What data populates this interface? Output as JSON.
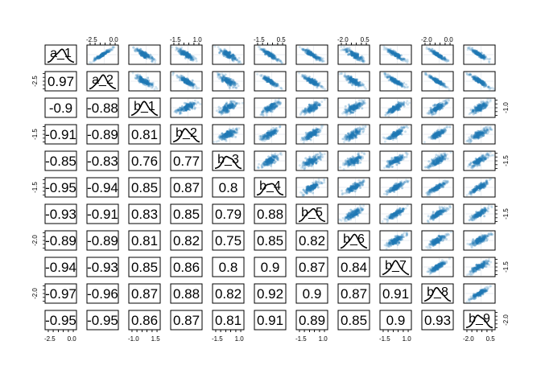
{
  "chart_data": {
    "type": "scatter",
    "subtype": "pairs-matrix",
    "title": "",
    "variables": [
      "a_1",
      "a_2",
      "b_1",
      "b_2",
      "b_3",
      "b_4",
      "b_5",
      "b_6",
      "b_7",
      "b_8",
      "b_9"
    ],
    "correlation_rows": [
      [
        0.97
      ],
      [
        -0.9,
        -0.88
      ],
      [
        -0.91,
        -0.89,
        0.81
      ],
      [
        -0.85,
        -0.83,
        0.76,
        0.77
      ],
      [
        -0.95,
        -0.94,
        0.85,
        0.87,
        0.8
      ],
      [
        -0.93,
        -0.91,
        0.83,
        0.85,
        0.79,
        0.88
      ],
      [
        -0.89,
        -0.89,
        0.81,
        0.82,
        0.75,
        0.85,
        0.82
      ],
      [
        -0.94,
        -0.93,
        0.85,
        0.86,
        0.8,
        0.9,
        0.87,
        0.84
      ],
      [
        -0.97,
        -0.96,
        0.87,
        0.88,
        0.82,
        0.92,
        0.9,
        0.87,
        0.91
      ],
      [
        -0.95,
        -0.95,
        0.86,
        0.87,
        0.81,
        0.91,
        0.89,
        0.85,
        0.9,
        0.93
      ]
    ],
    "correlation_labels_rows": [
      [
        "0.97"
      ],
      [
        "-0.9",
        "-0.88"
      ],
      [
        "-0.91",
        "-0.89",
        "0.81"
      ],
      [
        "-0.85",
        "-0.83",
        "0.76",
        "0.77"
      ],
      [
        "-0.95",
        "-0.94",
        "0.85",
        "0.87",
        "0.8"
      ],
      [
        "-0.93",
        "-0.91",
        "0.83",
        "0.85",
        "0.79",
        "0.88"
      ],
      [
        "-0.89",
        "-0.89",
        "0.81",
        "0.82",
        "0.75",
        "0.85",
        "0.82"
      ],
      [
        "-0.94",
        "-0.93",
        "0.85",
        "0.86",
        "0.8",
        "0.9",
        "0.87",
        "0.84"
      ],
      [
        "-0.97",
        "-0.96",
        "0.87",
        "0.88",
        "0.82",
        "0.92",
        "0.9",
        "0.87",
        "0.91"
      ],
      [
        "-0.95",
        "-0.95",
        "0.86",
        "0.87",
        "0.81",
        "0.91",
        "0.89",
        "0.85",
        "0.9",
        "0.93"
      ]
    ],
    "axis_ranges": [
      [
        -3.2,
        0.6
      ],
      [
        -3.2,
        0.6
      ],
      [
        -1.6,
        2.0
      ],
      [
        -2.0,
        1.5
      ],
      [
        -2.2,
        1.2
      ],
      [
        -2.2,
        1.2
      ],
      [
        -2.5,
        1.5
      ],
      [
        -2.5,
        1.0
      ],
      [
        -2.2,
        1.2
      ],
      [
        -2.5,
        1.5
      ],
      [
        -2.5,
        1.0
      ]
    ],
    "axis_ticks": [
      {
        "variable": "a_1",
        "side": "bottom",
        "labels": [
          "-2.5",
          "0.0"
        ]
      },
      {
        "variable": "a_2",
        "side": "top",
        "labels": [
          "-2.5",
          "0.0"
        ]
      },
      {
        "variable": "a_2",
        "side": "left",
        "labels": [
          "-2.5"
        ]
      },
      {
        "variable": "b_1",
        "side": "bottom",
        "labels": [
          "-1.0",
          "1.5"
        ]
      },
      {
        "variable": "b_1",
        "side": "right",
        "labels": [
          "-1.0"
        ]
      },
      {
        "variable": "b_2",
        "side": "top",
        "labels": [
          "-1.5",
          "1.0"
        ]
      },
      {
        "variable": "b_2",
        "side": "left",
        "labels": [
          "-1.5"
        ]
      },
      {
        "variable": "b_3",
        "side": "bottom",
        "labels": [
          "-1.5",
          "1.0"
        ]
      },
      {
        "variable": "b_3",
        "side": "right",
        "labels": [
          "-1.5"
        ]
      },
      {
        "variable": "b_4",
        "side": "top",
        "labels": [
          "-1.5",
          "0.5"
        ]
      },
      {
        "variable": "b_4",
        "side": "left",
        "labels": [
          "-1.5"
        ]
      },
      {
        "variable": "b_5",
        "side": "bottom",
        "labels": [
          "-1.5",
          "1.0"
        ]
      },
      {
        "variable": "b_5",
        "side": "right",
        "labels": [
          "-1.5"
        ]
      },
      {
        "variable": "b_6",
        "side": "top",
        "labels": [
          "-2.0",
          "0.5"
        ]
      },
      {
        "variable": "b_6",
        "side": "left",
        "labels": [
          "-2.0"
        ]
      },
      {
        "variable": "b_7",
        "side": "bottom",
        "labels": [
          "-1.5",
          "1.0"
        ]
      },
      {
        "variable": "b_7",
        "side": "right",
        "labels": [
          "-1.5"
        ]
      },
      {
        "variable": "b_8",
        "side": "top",
        "labels": [
          "-2.0",
          "0.0"
        ]
      },
      {
        "variable": "b_8",
        "side": "left",
        "labels": [
          "-2.0"
        ]
      },
      {
        "variable": "b_9",
        "side": "bottom",
        "labels": [
          "-2.0",
          "0.5"
        ]
      },
      {
        "variable": "b_9",
        "side": "right",
        "labels": [
          "-2.0"
        ]
      }
    ],
    "upper_panels": "scatter",
    "lower_panels": "correlation",
    "diagonal_panels": "density",
    "point_color": "#1f78b4",
    "grid": true,
    "legend": "none"
  }
}
